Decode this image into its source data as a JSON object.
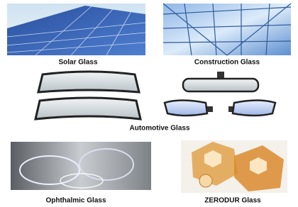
{
  "panels": [
    {
      "label": "Solar Glass"
    },
    {
      "label": "Construction Glass"
    },
    {
      "label": "Automotive Glass"
    },
    {
      "label": "Ophthalmic Glass"
    },
    {
      "label": "ZERODUR Glass"
    }
  ]
}
